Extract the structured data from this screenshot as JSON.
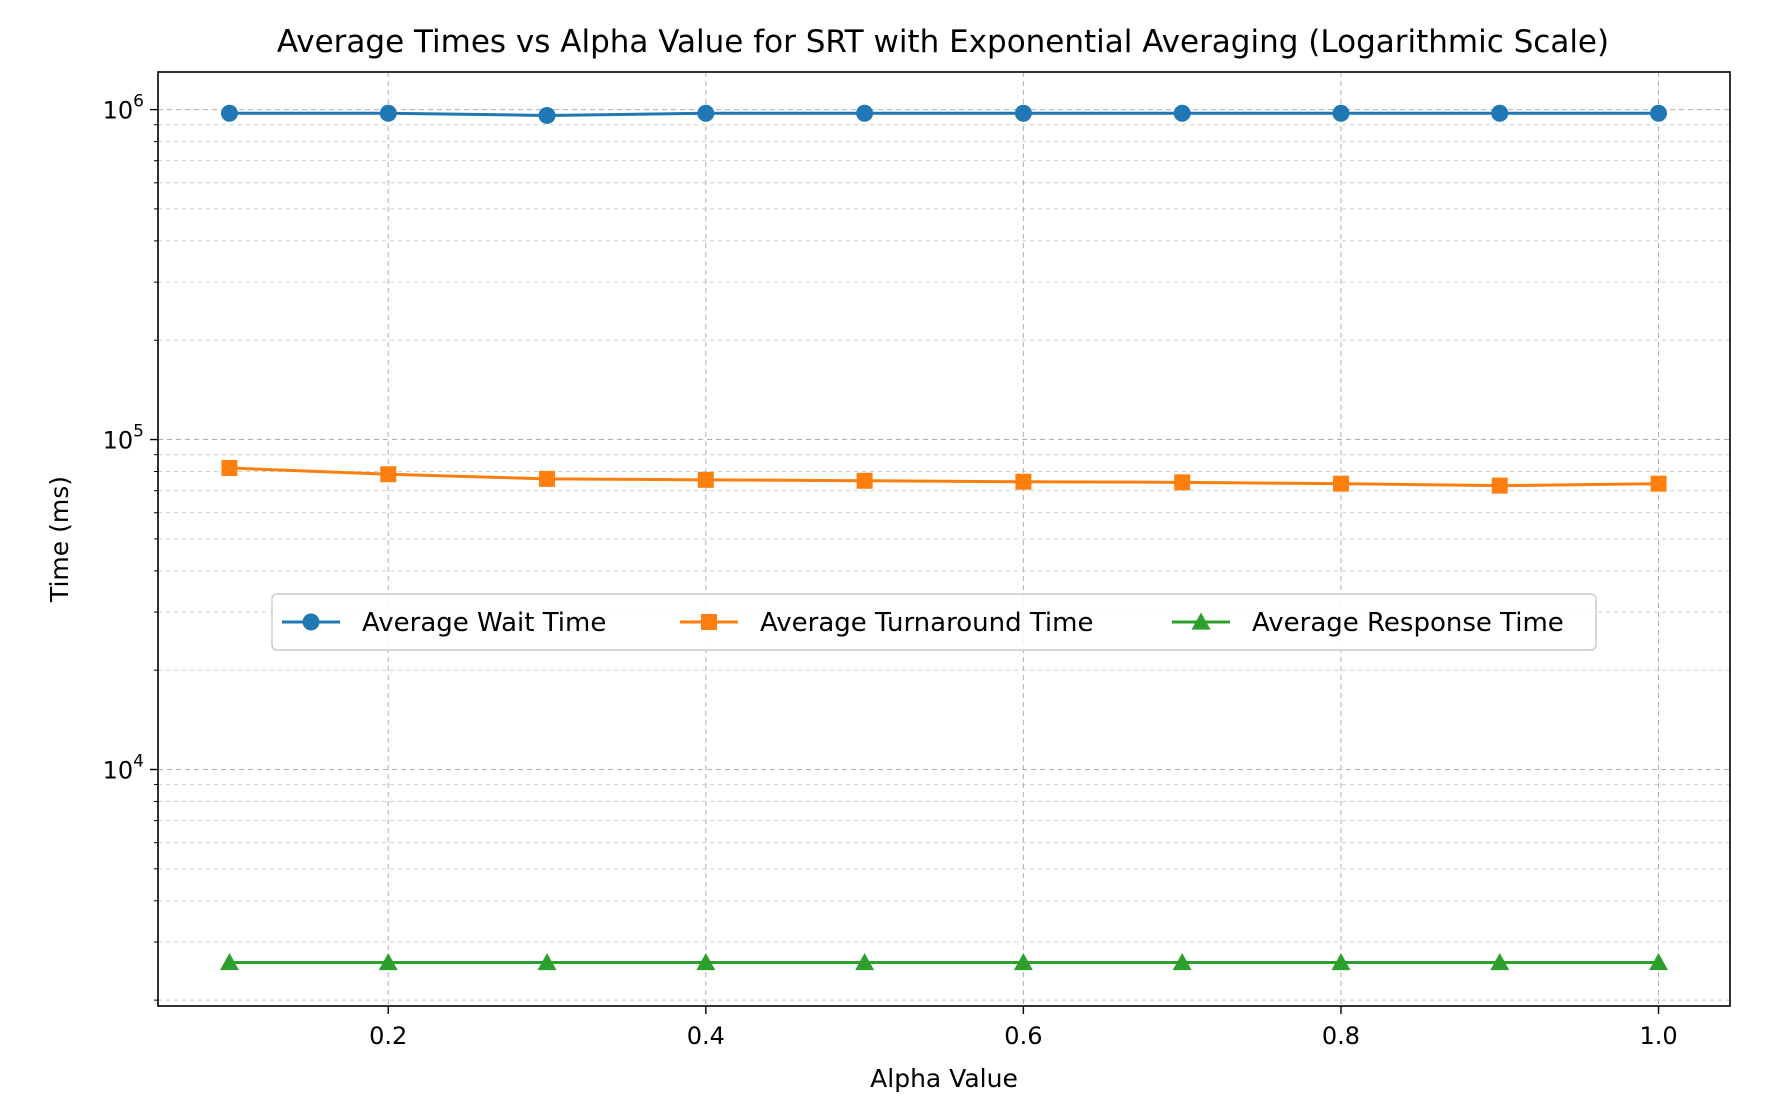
{
  "chart_data": {
    "type": "line",
    "title": "Average Times vs Alpha Value for SRT with Exponential Averaging (Logarithmic Scale)",
    "xlabel": "Alpha Value",
    "ylabel": "Time (ms)",
    "yscale": "log",
    "xlim": [
      0.055,
      1.045
    ],
    "ylim": [
      1920,
      1300000
    ],
    "x_ticks": [
      0.2,
      0.4,
      0.6,
      0.8,
      1.0
    ],
    "x_tick_labels": [
      "0.2",
      "0.4",
      "0.6",
      "0.8",
      "1.0"
    ],
    "y_ticks": [
      {
        "value": 10000,
        "base": "10",
        "exp": "4"
      },
      {
        "value": 100000,
        "base": "10",
        "exp": "5"
      },
      {
        "value": 1000000,
        "base": "10",
        "exp": "6"
      }
    ],
    "grid": true,
    "legend_position": "center",
    "x": [
      0.1,
      0.2,
      0.3,
      0.4,
      0.5,
      0.6,
      0.7,
      0.8,
      0.9,
      1.0
    ],
    "series": [
      {
        "name": "Average Wait Time",
        "color": "#1f77b4",
        "marker": "circle",
        "values": [
          975000,
          975000,
          960000,
          975000,
          975000,
          975000,
          975000,
          975000,
          975000,
          975000
        ]
      },
      {
        "name": "Average Turnaround Time",
        "color": "#ff7f0e",
        "marker": "square",
        "values": [
          82000,
          78500,
          76000,
          75500,
          75000,
          74500,
          74200,
          73500,
          72500,
          73500
        ]
      },
      {
        "name": "Average Response Time",
        "color": "#2ca02c",
        "marker": "triangle",
        "values": [
          2600,
          2600,
          2600,
          2600,
          2600,
          2600,
          2600,
          2600,
          2600,
          2600
        ]
      }
    ]
  }
}
